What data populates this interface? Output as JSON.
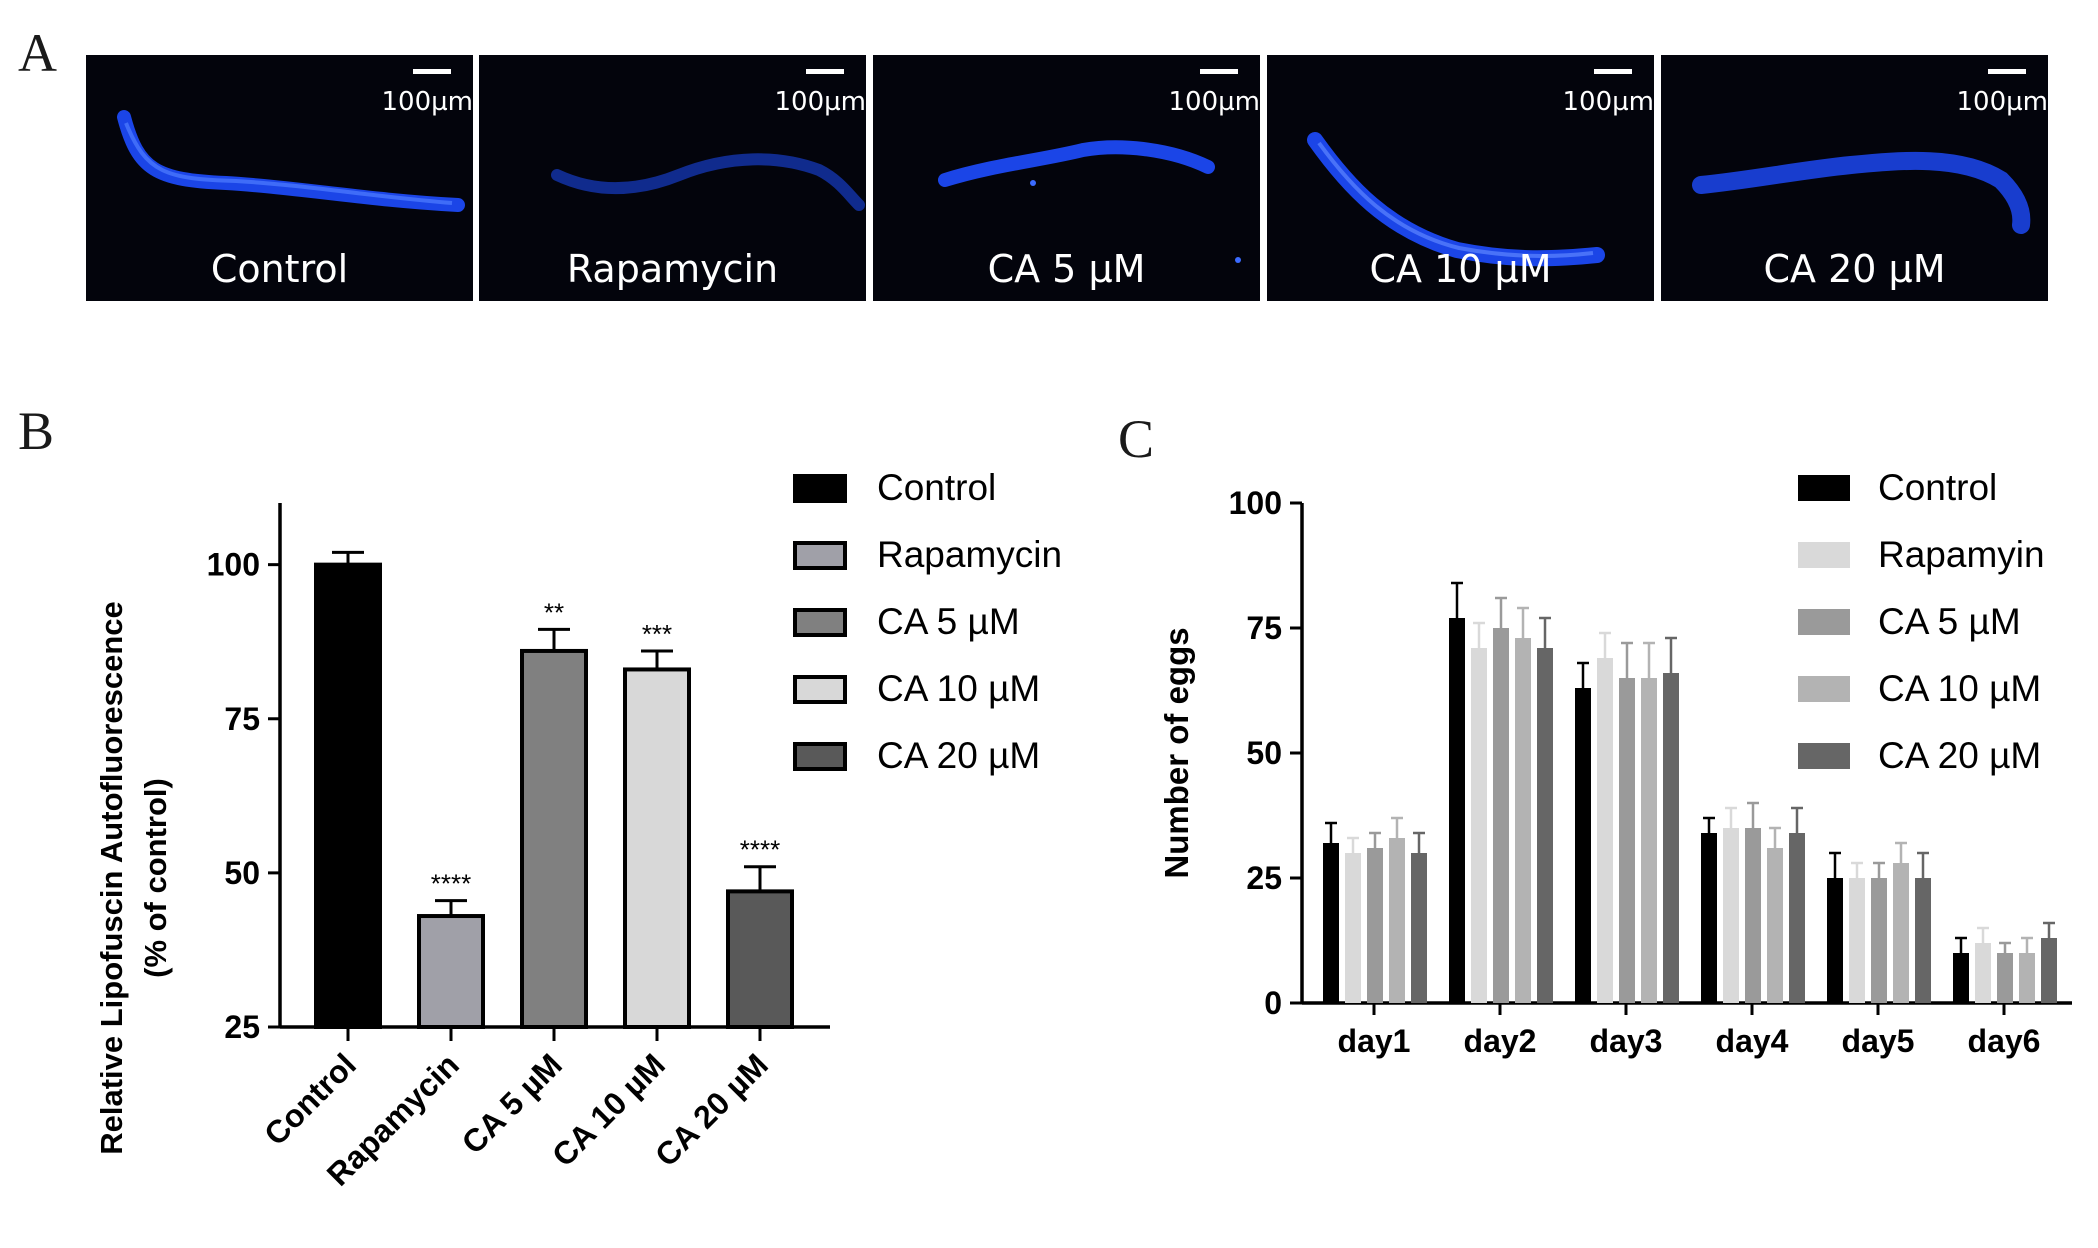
{
  "panel_a": {
    "letter": "A",
    "scale_label": "100µm",
    "images": [
      {
        "label": "Control"
      },
      {
        "label": "Rapamycin"
      },
      {
        "label": "CA 5 µM"
      },
      {
        "label": "CA 10 µM"
      },
      {
        "label": "CA 20 µM"
      }
    ]
  },
  "panel_b": {
    "letter": "B"
  },
  "panel_c": {
    "letter": "C"
  },
  "chart_data": [
    {
      "type": "bar",
      "panel": "B",
      "ylabel_line1": "Relative Lipofuscin Autofluorescence",
      "ylabel_line2": "(% of control)",
      "xlabel": "",
      "ylim": [
        25,
        110
      ],
      "yticks": [
        25,
        50,
        75,
        100
      ],
      "categories": [
        "Control",
        "Rapamycin",
        "CA 5 µM",
        "CA 10 µM",
        "CA 20 µM"
      ],
      "values": [
        100,
        43,
        86,
        83,
        47
      ],
      "errors": [
        2,
        2.5,
        3.5,
        3,
        4
      ],
      "significance": [
        "",
        "****",
        "**",
        "***",
        "****"
      ],
      "colors": [
        "#000000",
        "#a0a0a8",
        "#808080",
        "#d8d8d8",
        "#595959"
      ],
      "legend": [
        "Control",
        "Rapamycin",
        "CA 5 µM",
        "CA 10 µM",
        "CA 20 µM"
      ],
      "legend_position": "right"
    },
    {
      "type": "bar",
      "panel": "C",
      "ylabel": "Number of eggs",
      "xlabel": "",
      "ylim": [
        0,
        100
      ],
      "yticks": [
        0,
        25,
        50,
        75,
        100
      ],
      "categories": [
        "day1",
        "day2",
        "day3",
        "day4",
        "day5",
        "day6"
      ],
      "series": [
        {
          "name": "Control",
          "color": "#000000",
          "values": [
            32,
            77,
            63,
            34,
            25,
            10
          ],
          "errors": [
            4,
            7,
            5,
            3,
            5,
            3
          ]
        },
        {
          "name": "Rapamyin",
          "color": "#d9d9d9",
          "values": [
            30,
            71,
            69,
            35,
            25,
            12
          ],
          "errors": [
            3,
            5,
            5,
            4,
            3,
            3
          ]
        },
        {
          "name": "CA 5 µM",
          "color": "#9a9a9a",
          "values": [
            31,
            75,
            65,
            35,
            25,
            10
          ],
          "errors": [
            3,
            6,
            7,
            5,
            3,
            2
          ]
        },
        {
          "name": "CA 10 µM",
          "color": "#b3b3b3",
          "values": [
            33,
            73,
            65,
            31,
            28,
            10
          ],
          "errors": [
            4,
            6,
            7,
            4,
            4,
            3
          ]
        },
        {
          "name": "CA 20 µM",
          "color": "#666666",
          "values": [
            30,
            71,
            66,
            34,
            25,
            13
          ],
          "errors": [
            4,
            6,
            7,
            5,
            5,
            3
          ]
        }
      ],
      "legend_position": "top-right"
    }
  ]
}
